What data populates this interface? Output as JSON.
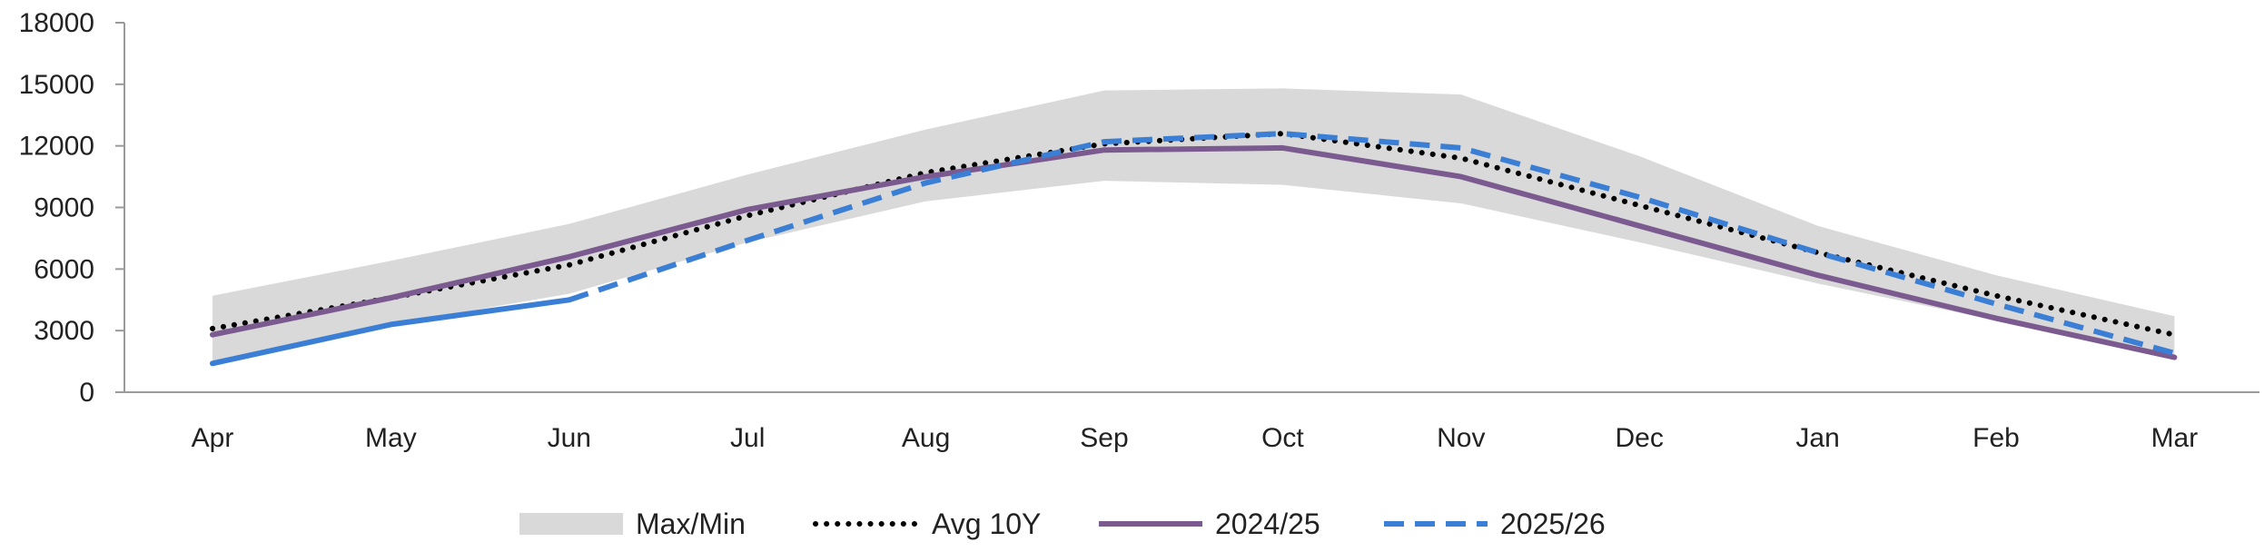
{
  "chart_data": {
    "type": "line",
    "categories": [
      "Apr",
      "May",
      "Jun",
      "Jul",
      "Aug",
      "Sep",
      "Oct",
      "Nov",
      "Dec",
      "Jan",
      "Feb",
      "Mar"
    ],
    "ylim": [
      0,
      18000
    ],
    "yticks": [
      0,
      3000,
      6000,
      9000,
      12000,
      15000,
      18000
    ],
    "grid": false,
    "legend_position": "bottom",
    "band": {
      "name": "Max/Min",
      "color": "#d9d9d9",
      "max": [
        4700,
        6400,
        8200,
        10600,
        12800,
        14700,
        14800,
        14500,
        11500,
        8100,
        5700,
        3700
      ],
      "min": [
        1500,
        3300,
        4800,
        7300,
        9300,
        10300,
        10100,
        9200,
        7300,
        5300,
        3500,
        1800
      ]
    },
    "series": [
      {
        "name": "Avg 10Y",
        "color": "#000000",
        "style": "dotted",
        "values": [
          3100,
          4600,
          6200,
          8600,
          10700,
          12100,
          12600,
          11400,
          9100,
          6800,
          4700,
          2800
        ]
      },
      {
        "name": "2024/25",
        "color": "#7b5a90",
        "style": "solid",
        "values": [
          2800,
          4600,
          6600,
          8900,
          10500,
          11800,
          11900,
          10500,
          8100,
          5700,
          3600,
          1700
        ]
      },
      {
        "name": "2025/26",
        "color": "#3a7fd5",
        "style": "solid-then-dashed",
        "solid_until": "Jun",
        "values": [
          1400,
          3300,
          4500,
          7400,
          10200,
          12200,
          12600,
          11900,
          9500,
          6800,
          4300,
          1900
        ]
      }
    ]
  }
}
